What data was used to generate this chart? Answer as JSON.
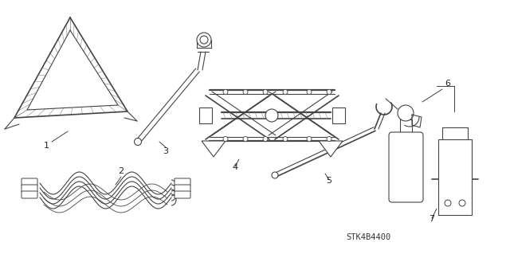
{
  "bg_color": "#ffffff",
  "line_color": "#444444",
  "label_color": "#222222",
  "part_code": "STK4B4400",
  "label_fontsize": 8,
  "code_fontsize": 7.5
}
